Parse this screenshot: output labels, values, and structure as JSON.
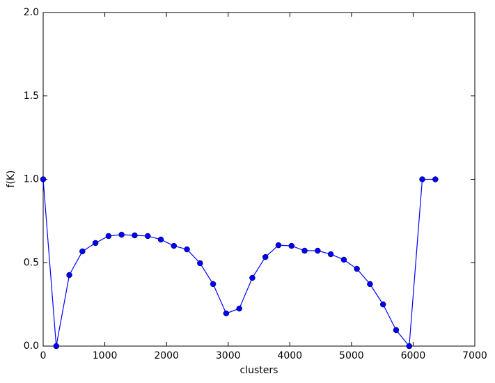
{
  "chart_data": {
    "type": "line",
    "xlabel": "clusters",
    "ylabel": "f(K)",
    "x": [
      0,
      212,
      424,
      636,
      848,
      1060,
      1272,
      1484,
      1696,
      1908,
      2120,
      2332,
      2544,
      2756,
      2968,
      3180,
      3392,
      3604,
      3816,
      4028,
      4240,
      4452,
      4664,
      4876,
      5088,
      5300,
      5512,
      5724,
      5936,
      6148,
      6360
    ],
    "series": [
      {
        "color": "#0000ff",
        "values": [
          1.0,
          0.0,
          0.426,
          0.568,
          0.618,
          0.66,
          0.668,
          0.664,
          0.66,
          0.639,
          0.601,
          0.58,
          0.497,
          0.372,
          0.196,
          0.225,
          0.409,
          0.534,
          0.605,
          0.601,
          0.572,
          0.572,
          0.551,
          0.518,
          0.463,
          0.372,
          0.25,
          0.096,
          0.0,
          1.0,
          1.0
        ]
      }
    ],
    "xlim": [
      0,
      7000
    ],
    "xticks": [
      0,
      1000,
      2000,
      3000,
      4000,
      5000,
      6000,
      7000
    ],
    "ylim": [
      0,
      2
    ],
    "yticks": [
      {
        "value": 0,
        "label": "0.0"
      },
      {
        "value": 0.5,
        "label": "0.5"
      },
      {
        "value": 1,
        "label": "1.0"
      },
      {
        "value": 1.5,
        "label": "1.5"
      },
      {
        "value": 2,
        "label": "2.0"
      }
    ]
  }
}
